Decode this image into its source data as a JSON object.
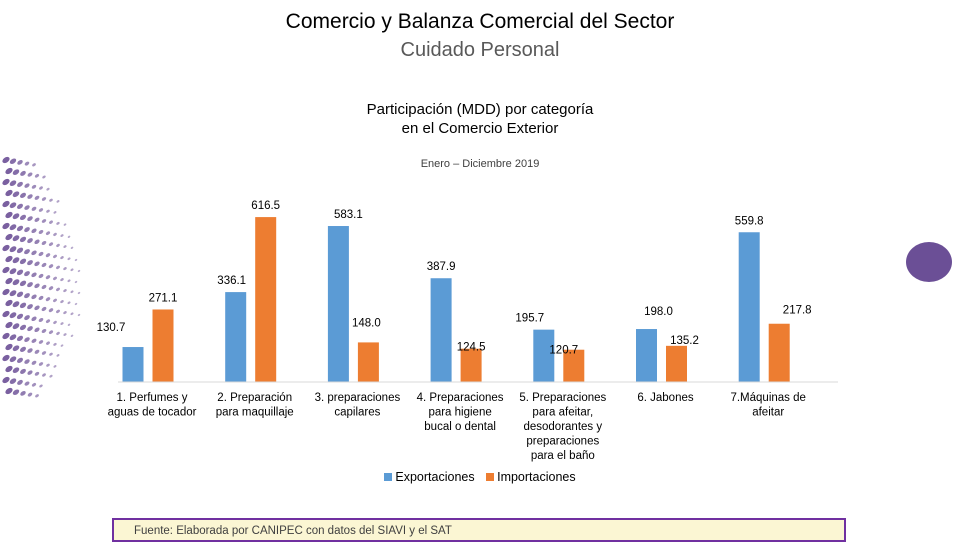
{
  "header": {
    "title": "Comercio y Balanza Comercial del Sector",
    "subtitle": "Cuidado Personal"
  },
  "chart_data": {
    "type": "bar",
    "title": "Participación (MDD) por categoría en el Comercio Exterior",
    "subtitle": "Enero – Diciembre 2019",
    "categories": [
      "1. Perfumes y aguas de tocador",
      "2. Preparación para maquillaje",
      "3. preparaciones capilares",
      "4. Preparaciones para higiene bucal o dental",
      "5. Preparaciones para afeitar, desodorantes y preparaciones para el baño",
      "6. Jabones",
      "7.Máquinas de afeitar"
    ],
    "series": [
      {
        "name": "Exportaciones",
        "color": "#5b9bd5",
        "values": [
          130.7,
          336.1,
          583.1,
          387.9,
          195.7,
          198.0,
          559.8
        ]
      },
      {
        "name": "Importaciones",
        "color": "#ed7d31",
        "values": [
          271.1,
          616.5,
          148.0,
          124.5,
          120.7,
          135.2,
          217.8
        ]
      }
    ],
    "legend_position": "bottom",
    "grid": false
  },
  "footer": {
    "source": "Fuente: Elaborada por CANIPEC con datos del SIAVI y el SAT"
  },
  "decoration": {
    "accent_color": "#6b4f96",
    "frame_color": "#7030a0"
  }
}
